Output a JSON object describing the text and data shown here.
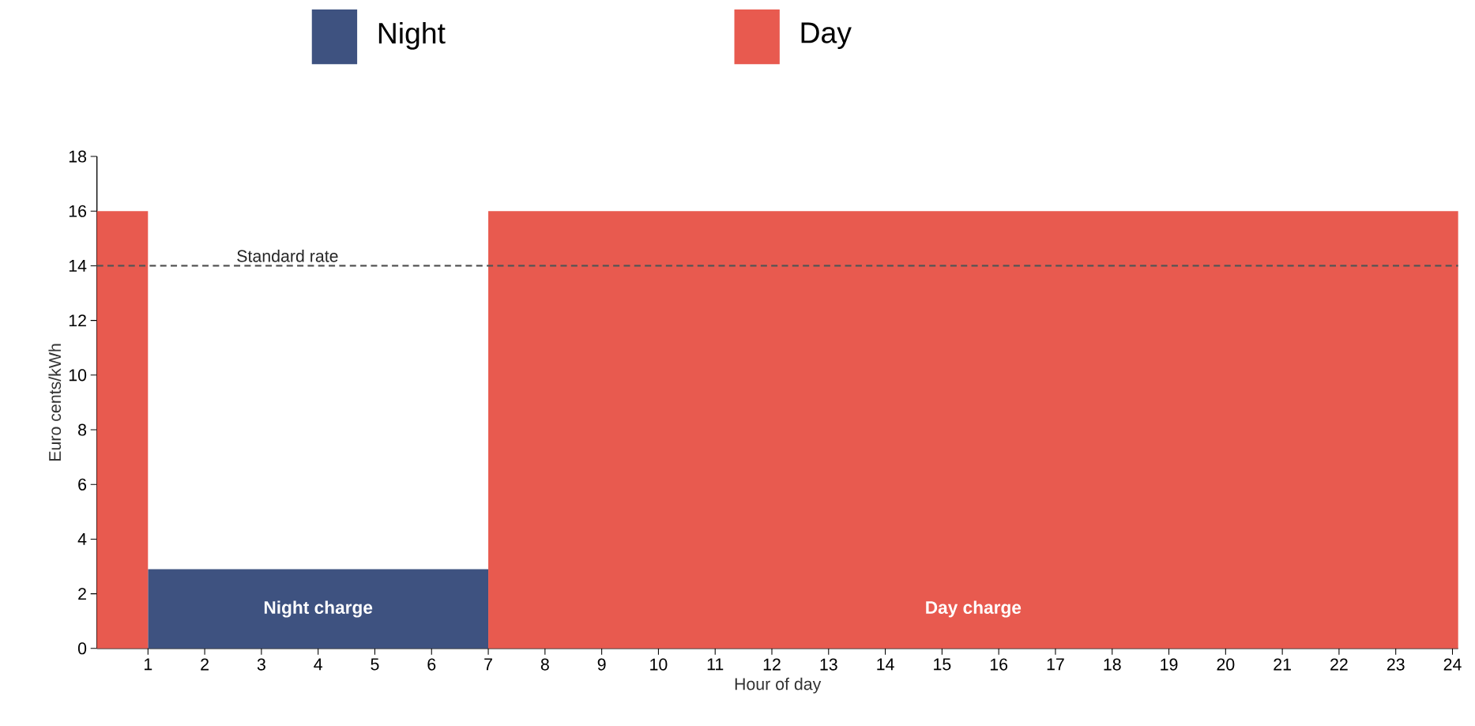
{
  "chart_data": {
    "type": "area",
    "xlabel": "Hour of day",
    "ylabel": "Euro cents/kWh",
    "series": [
      {
        "name": "Night",
        "color": "#3e5280",
        "x": [
          1,
          7
        ],
        "values": [
          2.9,
          2.9
        ]
      },
      {
        "name": "Day",
        "color": "#e85a4f",
        "x": [
          0.1,
          1
        ],
        "values": [
          16,
          16
        ]
      },
      {
        "color": "#e85a4f",
        "x": [
          7,
          24.1
        ],
        "values": [
          16,
          16
        ]
      }
    ],
    "xlim": [
      0.1,
      24.1
    ],
    "xticks": [
      1,
      2,
      3,
      4,
      5,
      6,
      7,
      8,
      9,
      10,
      11,
      12,
      13,
      14,
      15,
      16,
      17,
      18,
      19,
      20,
      21,
      22,
      23,
      24
    ],
    "ylim": [
      0,
      18
    ],
    "yticks": [
      0,
      2,
      4,
      6,
      8,
      10,
      12,
      14,
      16,
      18
    ],
    "ref_lines": [
      {
        "axis": "y",
        "value": 14,
        "label": "Standard rate",
        "color": "#555555",
        "line_style": "dashed"
      }
    ],
    "annotations": [
      "Night charge",
      "Day charge"
    ],
    "legend": "top",
    "grid": false
  }
}
